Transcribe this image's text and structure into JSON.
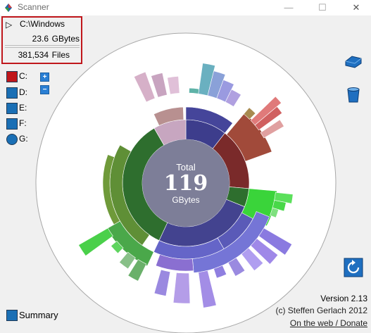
{
  "window": {
    "title": "Scanner"
  },
  "info": {
    "path": "C:\\Windows",
    "size_value": "23.6",
    "size_unit": "GBytes",
    "files_value": "381,534",
    "files_unit": "Files"
  },
  "drives": [
    {
      "label": "C:",
      "icon": "drive-red-icon",
      "color": "#c0171c"
    },
    {
      "label": "D:",
      "icon": "drive-blue-icon",
      "color": "#1a6fb5"
    },
    {
      "label": "E:",
      "icon": "drive-blue-icon",
      "color": "#1a6fb5"
    },
    {
      "label": "F:",
      "icon": "drive-blue-icon",
      "color": "#1a6fb5"
    },
    {
      "label": "G:",
      "icon": "cd-icon",
      "color": "#1a6fb5"
    }
  ],
  "zoom": {
    "plus": "+",
    "minus": "−"
  },
  "center": {
    "top": "Total",
    "value": "119",
    "unit": "GBytes"
  },
  "summary": {
    "label": "Summary"
  },
  "footer": {
    "version": "Version 2.13",
    "copyright": "(c) Steffen Gerlach 2012",
    "link": "On the web / Donate"
  },
  "colors": {
    "ring_blue": "#3f3f8f",
    "ring_red": "#7a2b2b",
    "ring_green": "#2f6f2f",
    "ring_pink": "#c49ab0",
    "selection_border": "#c0171c"
  }
}
